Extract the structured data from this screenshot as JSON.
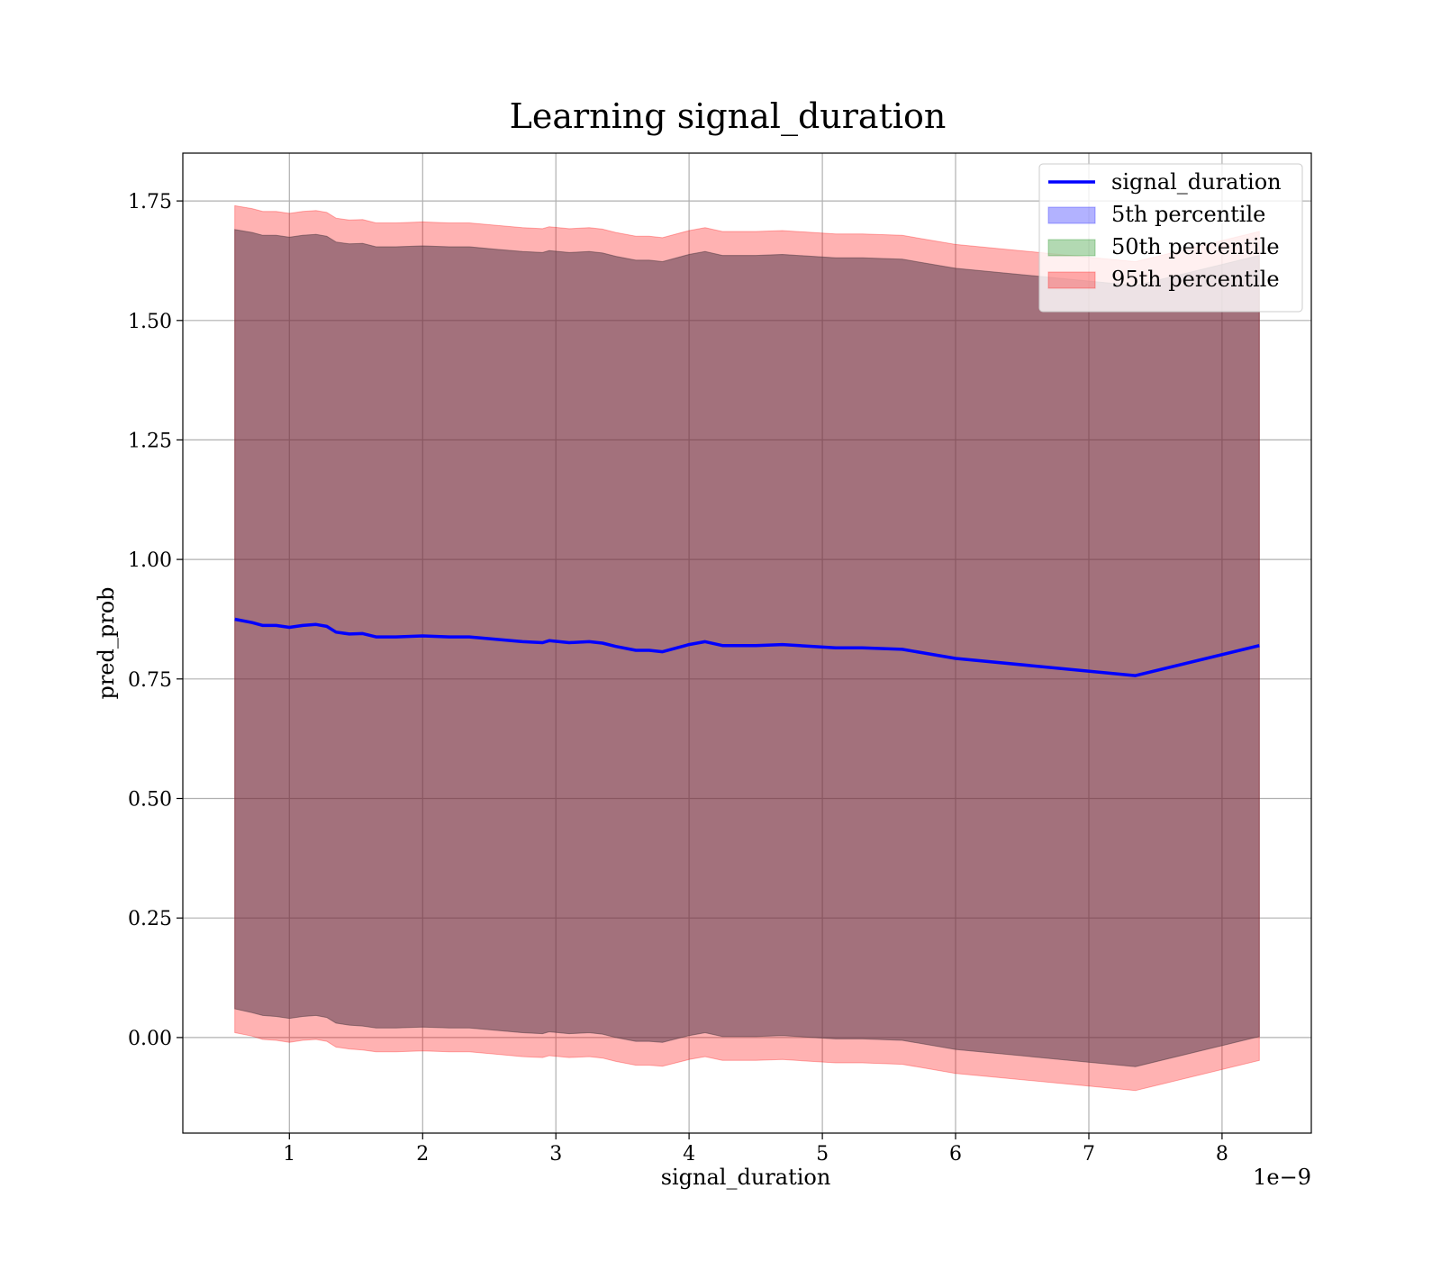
{
  "chart_data": {
    "type": "area",
    "title": "Learning signal_duration",
    "xlabel": "signal_duration",
    "ylabel": "pred_prob",
    "x_offset_label": "1e−9",
    "xlim": [
      0.2,
      8.67
    ],
    "ylim": [
      -0.2,
      1.85
    ],
    "grid": true,
    "legend_position": "top-right",
    "x_ticks": [
      1,
      2,
      3,
      4,
      5,
      6,
      7,
      8
    ],
    "y_ticks": [
      0.0,
      0.25,
      0.5,
      0.75,
      1.0,
      1.25,
      1.5,
      1.75
    ],
    "x_tick_labels": [
      "1",
      "2",
      "3",
      "4",
      "5",
      "6",
      "7",
      "8"
    ],
    "y_tick_labels": [
      "0.00",
      "0.25",
      "0.50",
      "0.75",
      "1.00",
      "1.25",
      "1.50",
      "1.75"
    ],
    "x": [
      0.59,
      0.72,
      0.8,
      0.9,
      1.0,
      1.1,
      1.2,
      1.28,
      1.35,
      1.45,
      1.55,
      1.65,
      1.8,
      2.0,
      2.2,
      2.35,
      2.55,
      2.75,
      2.9,
      2.95,
      3.1,
      3.25,
      3.35,
      3.45,
      3.6,
      3.7,
      3.8,
      4.0,
      4.12,
      4.25,
      4.5,
      4.7,
      5.1,
      5.3,
      5.6,
      6.0,
      7.35,
      8.28
    ],
    "series": [
      {
        "name": "signal_duration",
        "kind": "line",
        "color": "#0000ff",
        "values": [
          0.875,
          0.868,
          0.862,
          0.862,
          0.858,
          0.862,
          0.864,
          0.86,
          0.848,
          0.844,
          0.845,
          0.838,
          0.838,
          0.84,
          0.838,
          0.838,
          0.833,
          0.828,
          0.826,
          0.83,
          0.826,
          0.828,
          0.825,
          0.818,
          0.81,
          0.81,
          0.807,
          0.822,
          0.828,
          0.82,
          0.82,
          0.822,
          0.815,
          0.815,
          0.812,
          0.793,
          0.757,
          0.82
        ]
      },
      {
        "name": "5th percentile",
        "kind": "band",
        "color": "#0000ff",
        "lower": [
          0.06,
          0.052,
          0.046,
          0.044,
          0.04,
          0.044,
          0.046,
          0.042,
          0.03,
          0.026,
          0.024,
          0.02,
          0.02,
          0.022,
          0.02,
          0.02,
          0.015,
          0.01,
          0.008,
          0.012,
          0.008,
          0.01,
          0.007,
          0.0,
          -0.008,
          -0.008,
          -0.01,
          0.004,
          0.01,
          0.002,
          0.002,
          0.004,
          -0.003,
          -0.003,
          -0.006,
          -0.025,
          -0.061,
          0.002
        ],
        "upper": [
          1.69,
          1.684,
          1.678,
          1.678,
          1.674,
          1.678,
          1.68,
          1.676,
          1.664,
          1.66,
          1.661,
          1.654,
          1.654,
          1.656,
          1.654,
          1.654,
          1.649,
          1.644,
          1.642,
          1.646,
          1.642,
          1.644,
          1.641,
          1.634,
          1.626,
          1.626,
          1.623,
          1.638,
          1.644,
          1.636,
          1.636,
          1.638,
          1.631,
          1.631,
          1.628,
          1.609,
          1.573,
          1.636
        ]
      },
      {
        "name": "50th percentile",
        "kind": "band",
        "color": "#008000",
        "lower": [
          0.06,
          0.052,
          0.046,
          0.044,
          0.04,
          0.044,
          0.046,
          0.042,
          0.03,
          0.026,
          0.024,
          0.02,
          0.02,
          0.022,
          0.02,
          0.02,
          0.015,
          0.01,
          0.008,
          0.012,
          0.008,
          0.01,
          0.007,
          0.0,
          -0.008,
          -0.008,
          -0.01,
          0.004,
          0.01,
          0.002,
          0.002,
          0.004,
          -0.003,
          -0.003,
          -0.006,
          -0.025,
          -0.061,
          0.002
        ],
        "upper": [
          1.69,
          1.684,
          1.678,
          1.678,
          1.674,
          1.678,
          1.68,
          1.676,
          1.664,
          1.66,
          1.661,
          1.654,
          1.654,
          1.656,
          1.654,
          1.654,
          1.649,
          1.644,
          1.642,
          1.646,
          1.642,
          1.644,
          1.641,
          1.634,
          1.626,
          1.626,
          1.623,
          1.638,
          1.644,
          1.636,
          1.636,
          1.638,
          1.631,
          1.631,
          1.628,
          1.609,
          1.573,
          1.636
        ]
      },
      {
        "name": "95th percentile",
        "kind": "band",
        "color": "#ff0000",
        "lower": [
          0.01,
          0.003,
          -0.004,
          -0.006,
          -0.01,
          -0.006,
          -0.004,
          -0.008,
          -0.02,
          -0.024,
          -0.026,
          -0.03,
          -0.03,
          -0.028,
          -0.03,
          -0.03,
          -0.035,
          -0.04,
          -0.042,
          -0.038,
          -0.042,
          -0.04,
          -0.043,
          -0.05,
          -0.058,
          -0.058,
          -0.06,
          -0.046,
          -0.04,
          -0.048,
          -0.048,
          -0.046,
          -0.053,
          -0.053,
          -0.056,
          -0.075,
          -0.111,
          -0.048
        ],
        "upper": [
          1.74,
          1.734,
          1.728,
          1.728,
          1.724,
          1.728,
          1.73,
          1.726,
          1.714,
          1.71,
          1.711,
          1.704,
          1.704,
          1.706,
          1.704,
          1.704,
          1.699,
          1.694,
          1.692,
          1.696,
          1.692,
          1.694,
          1.691,
          1.684,
          1.676,
          1.676,
          1.673,
          1.688,
          1.694,
          1.686,
          1.686,
          1.688,
          1.681,
          1.681,
          1.678,
          1.659,
          1.623,
          1.686
        ]
      }
    ]
  }
}
